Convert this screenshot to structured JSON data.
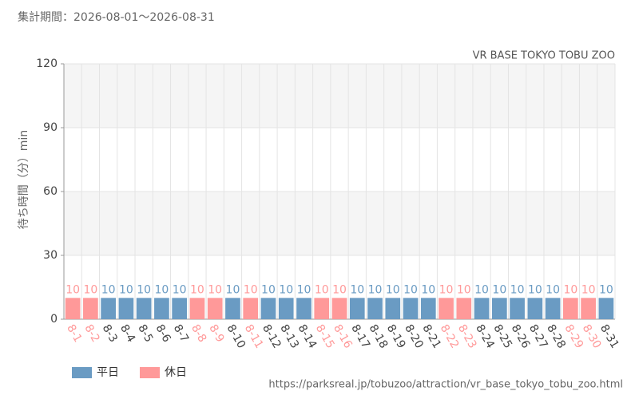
{
  "chart_data": {
    "type": "bar",
    "subtitle": "集計期間：2026-08-01～2026-08-31",
    "title": "VR BASE TOKYO TOBU ZOO",
    "y_label": "待ち時間（分）min",
    "source": "https://parksreal.jp/tobuzoo/attraction/vr_base_tokyo_tobu_zoo.html",
    "categories": [
      "8-1",
      "8-2",
      "8-3",
      "8-4",
      "8-5",
      "8-6",
      "8-7",
      "8-8",
      "8-9",
      "8-10",
      "8-11",
      "8-12",
      "8-13",
      "8-14",
      "8-15",
      "8-16",
      "8-17",
      "8-18",
      "8-19",
      "8-20",
      "8-21",
      "8-22",
      "8-23",
      "8-24",
      "8-25",
      "8-26",
      "8-27",
      "8-28",
      "8-29",
      "8-30",
      "8-31"
    ],
    "series": [
      {
        "name": "平日",
        "color": "#6a9bc3",
        "values": [
          null,
          null,
          10,
          10,
          10,
          10,
          10,
          null,
          null,
          10,
          null,
          10,
          10,
          10,
          null,
          null,
          10,
          10,
          10,
          10,
          10,
          null,
          null,
          10,
          10,
          10,
          10,
          10,
          null,
          null,
          10
        ]
      },
      {
        "name": "休日",
        "color": "#ff9999",
        "values": [
          10,
          10,
          null,
          null,
          null,
          null,
          null,
          10,
          10,
          null,
          10,
          null,
          null,
          null,
          10,
          10,
          null,
          null,
          null,
          null,
          null,
          10,
          10,
          null,
          null,
          null,
          null,
          null,
          10,
          10,
          null
        ]
      }
    ],
    "ylim": [
      0,
      120
    ],
    "yticks": [
      0,
      30,
      60,
      90,
      120
    ],
    "grid": true
  }
}
